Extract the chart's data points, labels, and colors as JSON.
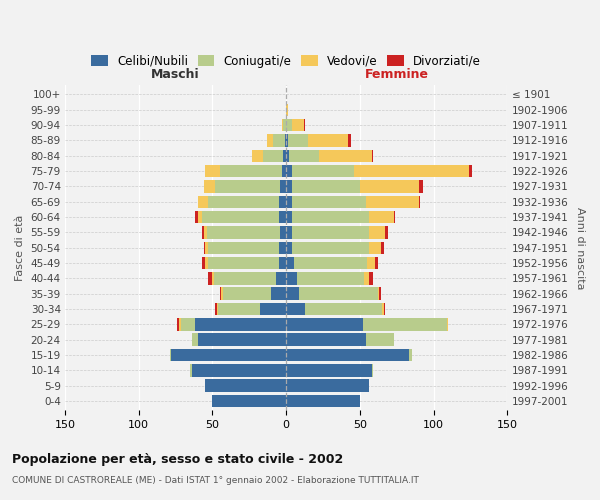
{
  "age_groups": [
    "100+",
    "95-99",
    "90-94",
    "85-89",
    "80-84",
    "75-79",
    "70-74",
    "65-69",
    "60-64",
    "55-59",
    "50-54",
    "45-49",
    "40-44",
    "35-39",
    "30-34",
    "25-29",
    "20-24",
    "15-19",
    "10-14",
    "5-9",
    "0-4"
  ],
  "birth_years": [
    "≤ 1901",
    "1902-1906",
    "1907-1911",
    "1912-1916",
    "1917-1921",
    "1922-1926",
    "1927-1931",
    "1932-1936",
    "1937-1941",
    "1942-1946",
    "1947-1951",
    "1952-1956",
    "1957-1961",
    "1962-1966",
    "1967-1971",
    "1972-1976",
    "1977-1981",
    "1982-1986",
    "1987-1991",
    "1992-1996",
    "1997-2001"
  ],
  "male_celibi": [
    0,
    0,
    0,
    1,
    2,
    3,
    4,
    5,
    5,
    4,
    5,
    5,
    7,
    10,
    18,
    62,
    60,
    78,
    64,
    55,
    50
  ],
  "male_coniugati": [
    0,
    0,
    2,
    8,
    14,
    42,
    44,
    48,
    52,
    50,
    48,
    48,
    42,
    33,
    28,
    9,
    4,
    1,
    1,
    0,
    0
  ],
  "male_vedovi": [
    0,
    0,
    1,
    4,
    7,
    10,
    8,
    7,
    3,
    2,
    2,
    2,
    1,
    1,
    1,
    2,
    0,
    0,
    0,
    0,
    0
  ],
  "male_divorziati": [
    0,
    0,
    0,
    0,
    0,
    0,
    0,
    0,
    2,
    1,
    1,
    2,
    3,
    1,
    1,
    1,
    0,
    0,
    0,
    0,
    0
  ],
  "fem_nubili": [
    0,
    0,
    0,
    1,
    2,
    4,
    4,
    4,
    4,
    4,
    4,
    5,
    7,
    9,
    13,
    52,
    54,
    83,
    58,
    56,
    50
  ],
  "fem_coniugate": [
    0,
    0,
    4,
    14,
    20,
    42,
    46,
    50,
    52,
    52,
    52,
    50,
    46,
    53,
    52,
    57,
    19,
    2,
    1,
    0,
    0
  ],
  "fem_vedove": [
    0,
    1,
    8,
    27,
    36,
    78,
    40,
    36,
    17,
    11,
    8,
    5,
    3,
    1,
    1,
    1,
    0,
    0,
    0,
    0,
    0
  ],
  "fem_divorziate": [
    0,
    0,
    1,
    2,
    1,
    2,
    3,
    1,
    1,
    2,
    2,
    2,
    3,
    1,
    1,
    0,
    0,
    0,
    0,
    0,
    0
  ],
  "col_cel": "#3a6b9e",
  "col_con": "#b8cc8c",
  "col_ved": "#f5c85a",
  "col_div": "#cc2222",
  "xlim": 150,
  "bg_color": "#f2f2f2",
  "title": "Popolazione per età, sesso e stato civile - 2002",
  "subtitle": "COMUNE DI CASTROREALE (ME) - Dati ISTAT 1° gennaio 2002 - Elaborazione TUTTITALIA.IT",
  "ylabel_left": "Fasce di età",
  "ylabel_right": "Anni di nascita",
  "maschi_label": "Maschi",
  "femmine_label": "Femmine",
  "legend_labels": [
    "Celibi/Nubili",
    "Coniugati/e",
    "Vedovi/e",
    "Divorziati/e"
  ]
}
